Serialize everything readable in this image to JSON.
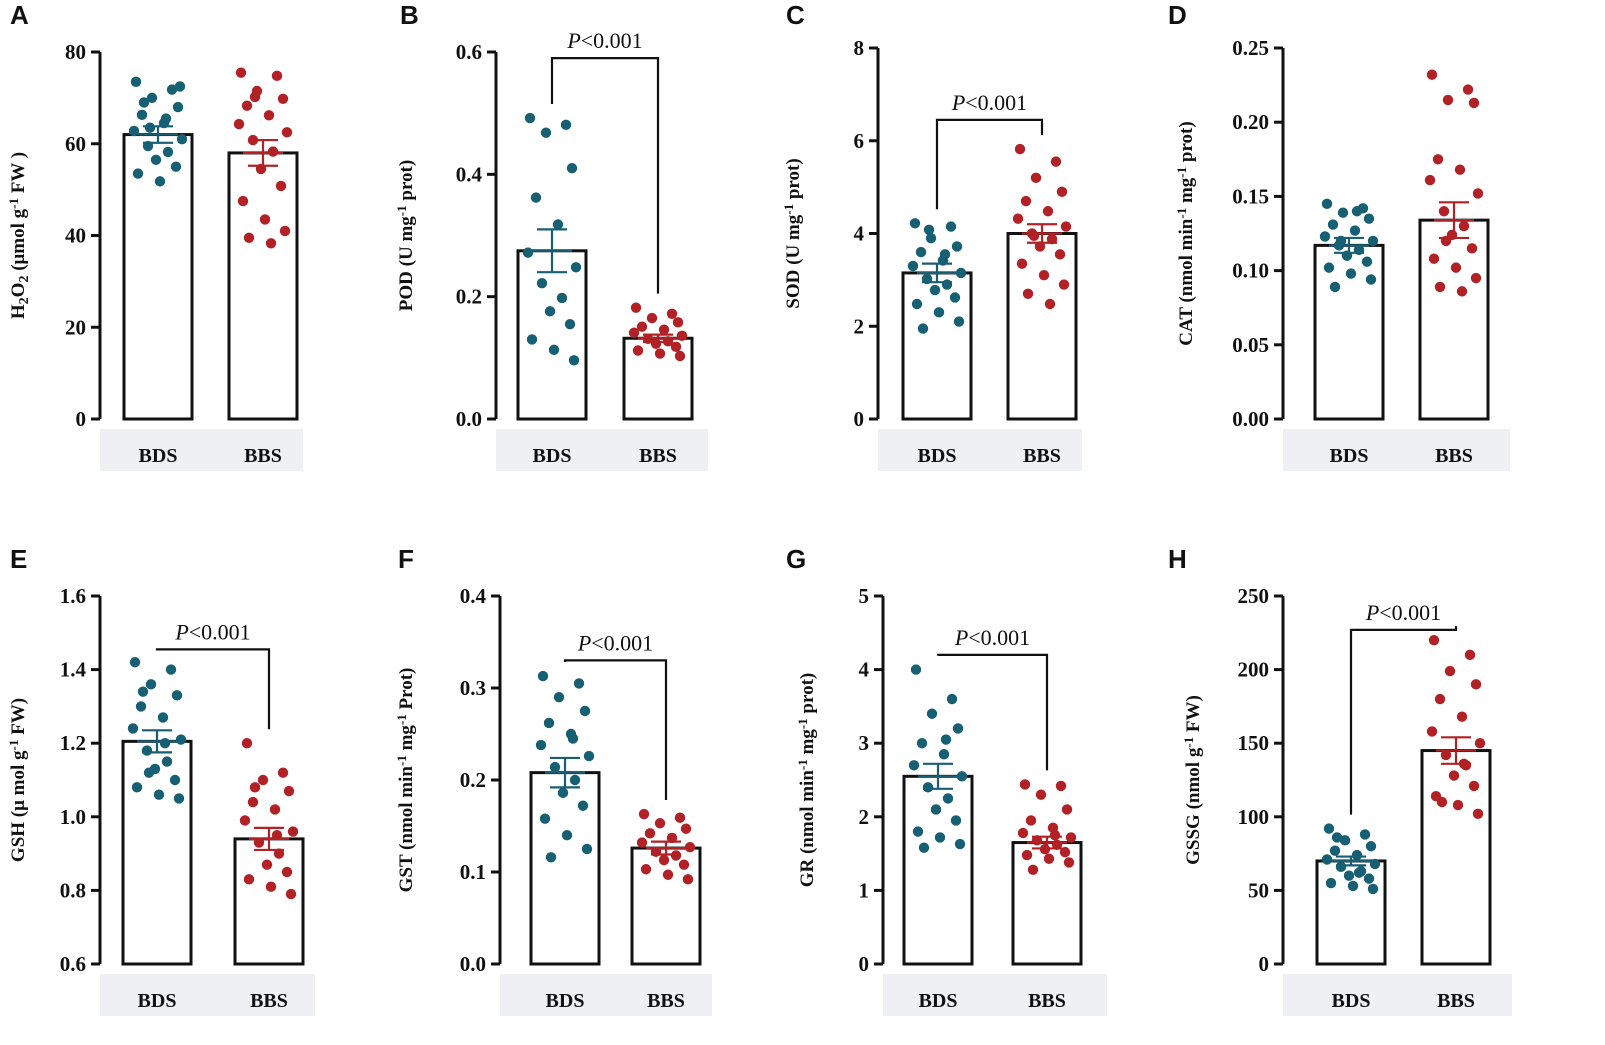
{
  "figure": {
    "colors": {
      "BDS": "#175f73",
      "BBS": "#b22125",
      "axis": "#111111",
      "band": "#eef0f3"
    }
  },
  "chart_data": [
    {
      "type": "bar",
      "panel": "A",
      "ylabel_parts": [
        [
          "H",
          ""
        ],
        [
          "2",
          "sub"
        ],
        [
          "O",
          ""
        ],
        [
          "2",
          "sub"
        ],
        [
          " (μmol g",
          ""
        ],
        [
          "-1",
          "sup"
        ],
        [
          " FW )",
          ""
        ]
      ],
      "yticks": [
        "0",
        "20",
        "40",
        "60",
        "80"
      ],
      "ylim": [
        0,
        80
      ],
      "categories": [
        "BDS",
        "BBS"
      ],
      "values": [
        62,
        58
      ],
      "sem": [
        1.8,
        2.8
      ],
      "points": [
        [
          73.5,
          71.8,
          70,
          68,
          66.3,
          64.5,
          62.8,
          61,
          59.5,
          58.2,
          56.5,
          55,
          53.5,
          51.8,
          72.5,
          69,
          65.5,
          63.5
        ],
        [
          75.5,
          74.8,
          71.5,
          69.8,
          68.3,
          66.2,
          64.3,
          62.5,
          60.8,
          58.3,
          54.5,
          50.8,
          47.5,
          43.5,
          41,
          39.5,
          38.3,
          70.2
        ]
      ],
      "significance": null
    },
    {
      "type": "bar",
      "panel": "B",
      "ylabel_parts": [
        [
          "POD (U mg",
          ""
        ],
        [
          "-1",
          "sup"
        ],
        [
          " prot)",
          ""
        ]
      ],
      "yticks": [
        "0.0",
        "0.2",
        "0.4",
        "0.6"
      ],
      "ylim": [
        0,
        0.6
      ],
      "categories": [
        "BDS",
        "BBS"
      ],
      "values": [
        0.275,
        0.132
      ],
      "sem": [
        0.035,
        0.006
      ],
      "points": [
        [
          0.492,
          0.481,
          0.468,
          0.41,
          0.362,
          0.318,
          0.272,
          0.248,
          0.222,
          0.198,
          0.176,
          0.155,
          0.13,
          0.113,
          0.096
        ],
        [
          0.182,
          0.172,
          0.165,
          0.158,
          0.151,
          0.146,
          0.141,
          0.136,
          0.131,
          0.127,
          0.123,
          0.118,
          0.112,
          0.107,
          0.103
        ]
      ],
      "significance": {
        "p_italic": "P",
        "p_rest": "<0.001",
        "bracket_y": 0.59
      }
    },
    {
      "type": "bar",
      "panel": "C",
      "ylabel_parts": [
        [
          "SOD (U mg",
          ""
        ],
        [
          "-1",
          "sup"
        ],
        [
          " prot)",
          ""
        ]
      ],
      "yticks": [
        "0",
        "2",
        "4",
        "6",
        "8"
      ],
      "ylim": [
        0,
        8
      ],
      "categories": [
        "BDS",
        "BBS"
      ],
      "values": [
        3.15,
        4.0
      ],
      "sem": [
        0.2,
        0.2
      ],
      "points": [
        [
          4.22,
          4.15,
          3.9,
          3.72,
          3.6,
          3.42,
          3.3,
          3.15,
          3.02,
          2.9,
          2.78,
          2.62,
          2.48,
          2.3,
          2.1,
          1.95,
          3.55,
          4.08
        ],
        [
          5.82,
          5.55,
          5.2,
          4.9,
          4.7,
          4.48,
          4.32,
          4.15,
          4.0,
          3.88,
          3.72,
          3.55,
          3.35,
          3.1,
          2.9,
          2.7,
          2.48,
          3.95
        ]
      ],
      "significance": {
        "p_italic": "P",
        "p_rest": "<0.001",
        "bracket_y": 6.45
      }
    },
    {
      "type": "bar",
      "panel": "D",
      "ylabel_parts": [
        [
          "CAT (nmol min",
          ""
        ],
        [
          "-1",
          "sup"
        ],
        [
          " mg",
          ""
        ],
        [
          "-1",
          "sup"
        ],
        [
          " prot)",
          ""
        ]
      ],
      "yticks": [
        "0.00",
        "0.05",
        "0.10",
        "0.15",
        "0.20",
        "0.25"
      ],
      "ylim": [
        0,
        0.25
      ],
      "categories": [
        "BDS",
        "BBS"
      ],
      "values": [
        0.117,
        0.134
      ],
      "sem": [
        0.005,
        0.012
      ],
      "points": [
        [
          0.145,
          0.142,
          0.139,
          0.135,
          0.131,
          0.127,
          0.123,
          0.12,
          0.117,
          0.114,
          0.11,
          0.106,
          0.102,
          0.098,
          0.094,
          0.089,
          0.14,
          0.12
        ],
        [
          0.232,
          0.222,
          0.215,
          0.213,
          0.175,
          0.168,
          0.161,
          0.152,
          0.14,
          0.13,
          0.124,
          0.115,
          0.108,
          0.102,
          0.095,
          0.089,
          0.086,
          0.12
        ]
      ],
      "significance": null
    },
    {
      "type": "bar",
      "panel": "E",
      "ylabel_parts": [
        [
          "GSH (μ mol g",
          ""
        ],
        [
          "-1",
          "sup"
        ],
        [
          " FW)",
          ""
        ]
      ],
      "yticks": [
        "0.6",
        "0.8",
        "1.0",
        "1.2",
        "1.4",
        "1.6"
      ],
      "ylim": [
        0.6,
        1.6
      ],
      "categories": [
        "BDS",
        "BBS"
      ],
      "values": [
        1.205,
        0.94
      ],
      "sem": [
        0.03,
        0.03
      ],
      "points": [
        [
          1.42,
          1.4,
          1.36,
          1.33,
          1.3,
          1.27,
          1.24,
          1.21,
          1.18,
          1.15,
          1.13,
          1.1,
          1.08,
          1.06,
          1.05,
          1.34,
          1.2,
          1.12
        ],
        [
          1.2,
          1.12,
          1.1,
          1.07,
          1.04,
          1.02,
          0.99,
          0.96,
          0.93,
          0.9,
          0.87,
          0.85,
          0.83,
          0.81,
          0.79,
          1.08,
          0.95
        ]
      ],
      "significance": {
        "p_italic": "P",
        "p_rest": "<0.001",
        "bracket_y": 1.455
      }
    },
    {
      "type": "bar",
      "panel": "F",
      "ylabel_parts": [
        [
          "GST (nmol min",
          ""
        ],
        [
          "-1",
          "sup"
        ],
        [
          " mg",
          ""
        ],
        [
          "-1",
          "sup"
        ],
        [
          " Prot)",
          ""
        ]
      ],
      "yticks": [
        "0.0",
        "0.1",
        "0.2",
        "0.3",
        "0.4"
      ],
      "ylim": [
        0,
        0.4
      ],
      "categories": [
        "BDS",
        "BBS"
      ],
      "values": [
        0.208,
        0.126
      ],
      "sem": [
        0.016,
        0.007
      ],
      "points": [
        [
          0.313,
          0.305,
          0.29,
          0.275,
          0.262,
          0.25,
          0.238,
          0.226,
          0.214,
          0.2,
          0.186,
          0.172,
          0.158,
          0.14,
          0.125,
          0.116,
          0.245
        ],
        [
          0.163,
          0.159,
          0.153,
          0.147,
          0.142,
          0.137,
          0.132,
          0.127,
          0.122,
          0.118,
          0.113,
          0.108,
          0.103,
          0.097,
          0.092
        ]
      ],
      "significance": {
        "p_italic": "P",
        "p_rest": "<0.001",
        "bracket_y": 0.33
      }
    },
    {
      "type": "bar",
      "panel": "G",
      "ylabel_parts": [
        [
          "GR (nmol min",
          ""
        ],
        [
          "-1",
          "sup"
        ],
        [
          " mg",
          ""
        ],
        [
          "-1",
          "sup"
        ],
        [
          " prot)",
          ""
        ]
      ],
      "yticks": [
        "0",
        "1",
        "2",
        "3",
        "4",
        "5"
      ],
      "ylim": [
        0,
        5
      ],
      "categories": [
        "BDS",
        "BBS"
      ],
      "values": [
        2.55,
        1.65
      ],
      "sem": [
        0.17,
        0.08
      ],
      "points": [
        [
          4.0,
          3.6,
          3.4,
          3.2,
          3.0,
          2.85,
          2.7,
          2.55,
          2.4,
          2.25,
          2.1,
          1.95,
          1.8,
          1.72,
          1.63,
          1.58,
          3.05
        ],
        [
          2.44,
          2.42,
          2.3,
          2.1,
          1.95,
          1.85,
          1.78,
          1.72,
          1.68,
          1.62,
          1.56,
          1.52,
          1.48,
          1.43,
          1.38,
          1.28,
          1.75
        ]
      ],
      "significance": {
        "p_italic": "P",
        "p_rest": "<0.001",
        "bracket_y": 4.2
      }
    },
    {
      "type": "bar",
      "panel": "H",
      "ylabel_parts": [
        [
          "GSSG (nmol g",
          ""
        ],
        [
          "-1",
          "sup"
        ],
        [
          " FW)",
          ""
        ]
      ],
      "yticks": [
        "0",
        "50",
        "100",
        "150",
        "200",
        "250"
      ],
      "ylim": [
        0,
        250
      ],
      "categories": [
        "BDS",
        "BBS"
      ],
      "values": [
        70,
        145
      ],
      "sem": [
        3,
        9
      ],
      "points": [
        [
          92,
          88,
          84,
          80,
          77,
          74,
          71,
          68,
          66,
          63,
          60,
          58,
          55,
          53,
          51,
          86,
          62
        ],
        [
          220,
          210,
          199,
          190,
          180,
          168,
          158,
          150,
          142,
          135,
          128,
          121,
          114,
          108,
          102,
          110,
          136
        ]
      ],
      "significance": {
        "p_italic": "P",
        "p_rest": "<0.001",
        "bracket_y": 227
      }
    }
  ]
}
